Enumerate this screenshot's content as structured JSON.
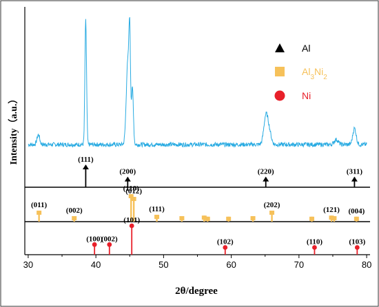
{
  "chart_data": {
    "type": "line",
    "xlabel": "2θ/degree",
    "ylabel": "Intensity（a.u.）",
    "xlim": [
      29.5,
      80.5
    ],
    "x_ticks": [
      30,
      40,
      50,
      60,
      70,
      80
    ],
    "colors": {
      "pattern": "#29abe2",
      "Al": "#000000",
      "Al3Ni2": "#f6c15a",
      "Ni": "#e8202a"
    },
    "legend": {
      "placement": "top-right",
      "items": [
        {
          "key": "Al",
          "marker": "triangle",
          "parts": [
            {
              "t": "Al",
              "sub": false
            }
          ]
        },
        {
          "key": "Al3Ni2",
          "marker": "square",
          "parts": [
            {
              "t": "Al",
              "sub": false
            },
            {
              "t": "3",
              "sub": true
            },
            {
              "t": "Ni",
              "sub": false
            },
            {
              "t": "2",
              "sub": true
            }
          ]
        },
        {
          "key": "Ni",
          "marker": "circle",
          "parts": [
            {
              "t": "Ni",
              "sub": false
            }
          ]
        }
      ]
    },
    "pattern": {
      "baseline": 0.2,
      "peaks": [
        {
          "x": 31.5,
          "h": 0.08,
          "w": 0.2
        },
        {
          "x": 38.5,
          "h": 1.0,
          "w": 0.12
        },
        {
          "x": 44.7,
          "h": 0.65,
          "w": 0.22
        },
        {
          "x": 45.0,
          "h": 0.75,
          "w": 0.12
        },
        {
          "x": 45.4,
          "h": 0.45,
          "w": 0.14
        },
        {
          "x": 65.1,
          "h": 0.22,
          "w": 0.3
        },
        {
          "x": 65.6,
          "h": 0.1,
          "w": 0.3
        },
        {
          "x": 75.5,
          "h": 0.04,
          "w": 0.3
        },
        {
          "x": 78.2,
          "h": 0.13,
          "w": 0.25
        }
      ]
    },
    "references": {
      "Al": [
        {
          "x": 38.5,
          "h": 1.0,
          "label": "(111)"
        },
        {
          "x": 44.7,
          "h": 0.45,
          "label": "(200)"
        },
        {
          "x": 65.1,
          "h": 0.45,
          "label": "(220)"
        },
        {
          "x": 78.2,
          "h": 0.45,
          "label": "(311)"
        }
      ],
      "Al3Ni2": [
        {
          "x": 31.6,
          "h": 0.4,
          "label": "(011)"
        },
        {
          "x": 36.8,
          "h": 0.2,
          "label": "(002)"
        },
        {
          "x": 45.2,
          "h": 1.0,
          "label": "(110)"
        },
        {
          "x": 45.6,
          "h": 0.9,
          "label": "(012)"
        },
        {
          "x": 49.0,
          "h": 0.25,
          "label": "(111)"
        },
        {
          "x": 52.7,
          "h": 0.2,
          "label": ""
        },
        {
          "x": 56.0,
          "h": 0.22,
          "label": ""
        },
        {
          "x": 56.5,
          "h": 0.18,
          "label": ""
        },
        {
          "x": 59.6,
          "h": 0.18,
          "label": ""
        },
        {
          "x": 63.2,
          "h": 0.2,
          "label": ""
        },
        {
          "x": 66.0,
          "h": 0.4,
          "label": "(202)"
        },
        {
          "x": 71.9,
          "h": 0.18,
          "label": ""
        },
        {
          "x": 74.8,
          "h": 0.22,
          "label": "(121)"
        },
        {
          "x": 75.2,
          "h": 0.2,
          "label": ""
        },
        {
          "x": 78.5,
          "h": 0.18,
          "label": "(004)"
        }
      ],
      "Ni": [
        {
          "x": 39.8,
          "h": 0.35,
          "label": "(100)"
        },
        {
          "x": 42.0,
          "h": 0.35,
          "label": "(002)"
        },
        {
          "x": 45.3,
          "h": 1.0,
          "label": "(101)"
        },
        {
          "x": 59.1,
          "h": 0.25,
          "label": "(102)"
        },
        {
          "x": 72.3,
          "h": 0.25,
          "label": "(110)"
        },
        {
          "x": 78.6,
          "h": 0.25,
          "label": "(103)"
        }
      ]
    }
  }
}
